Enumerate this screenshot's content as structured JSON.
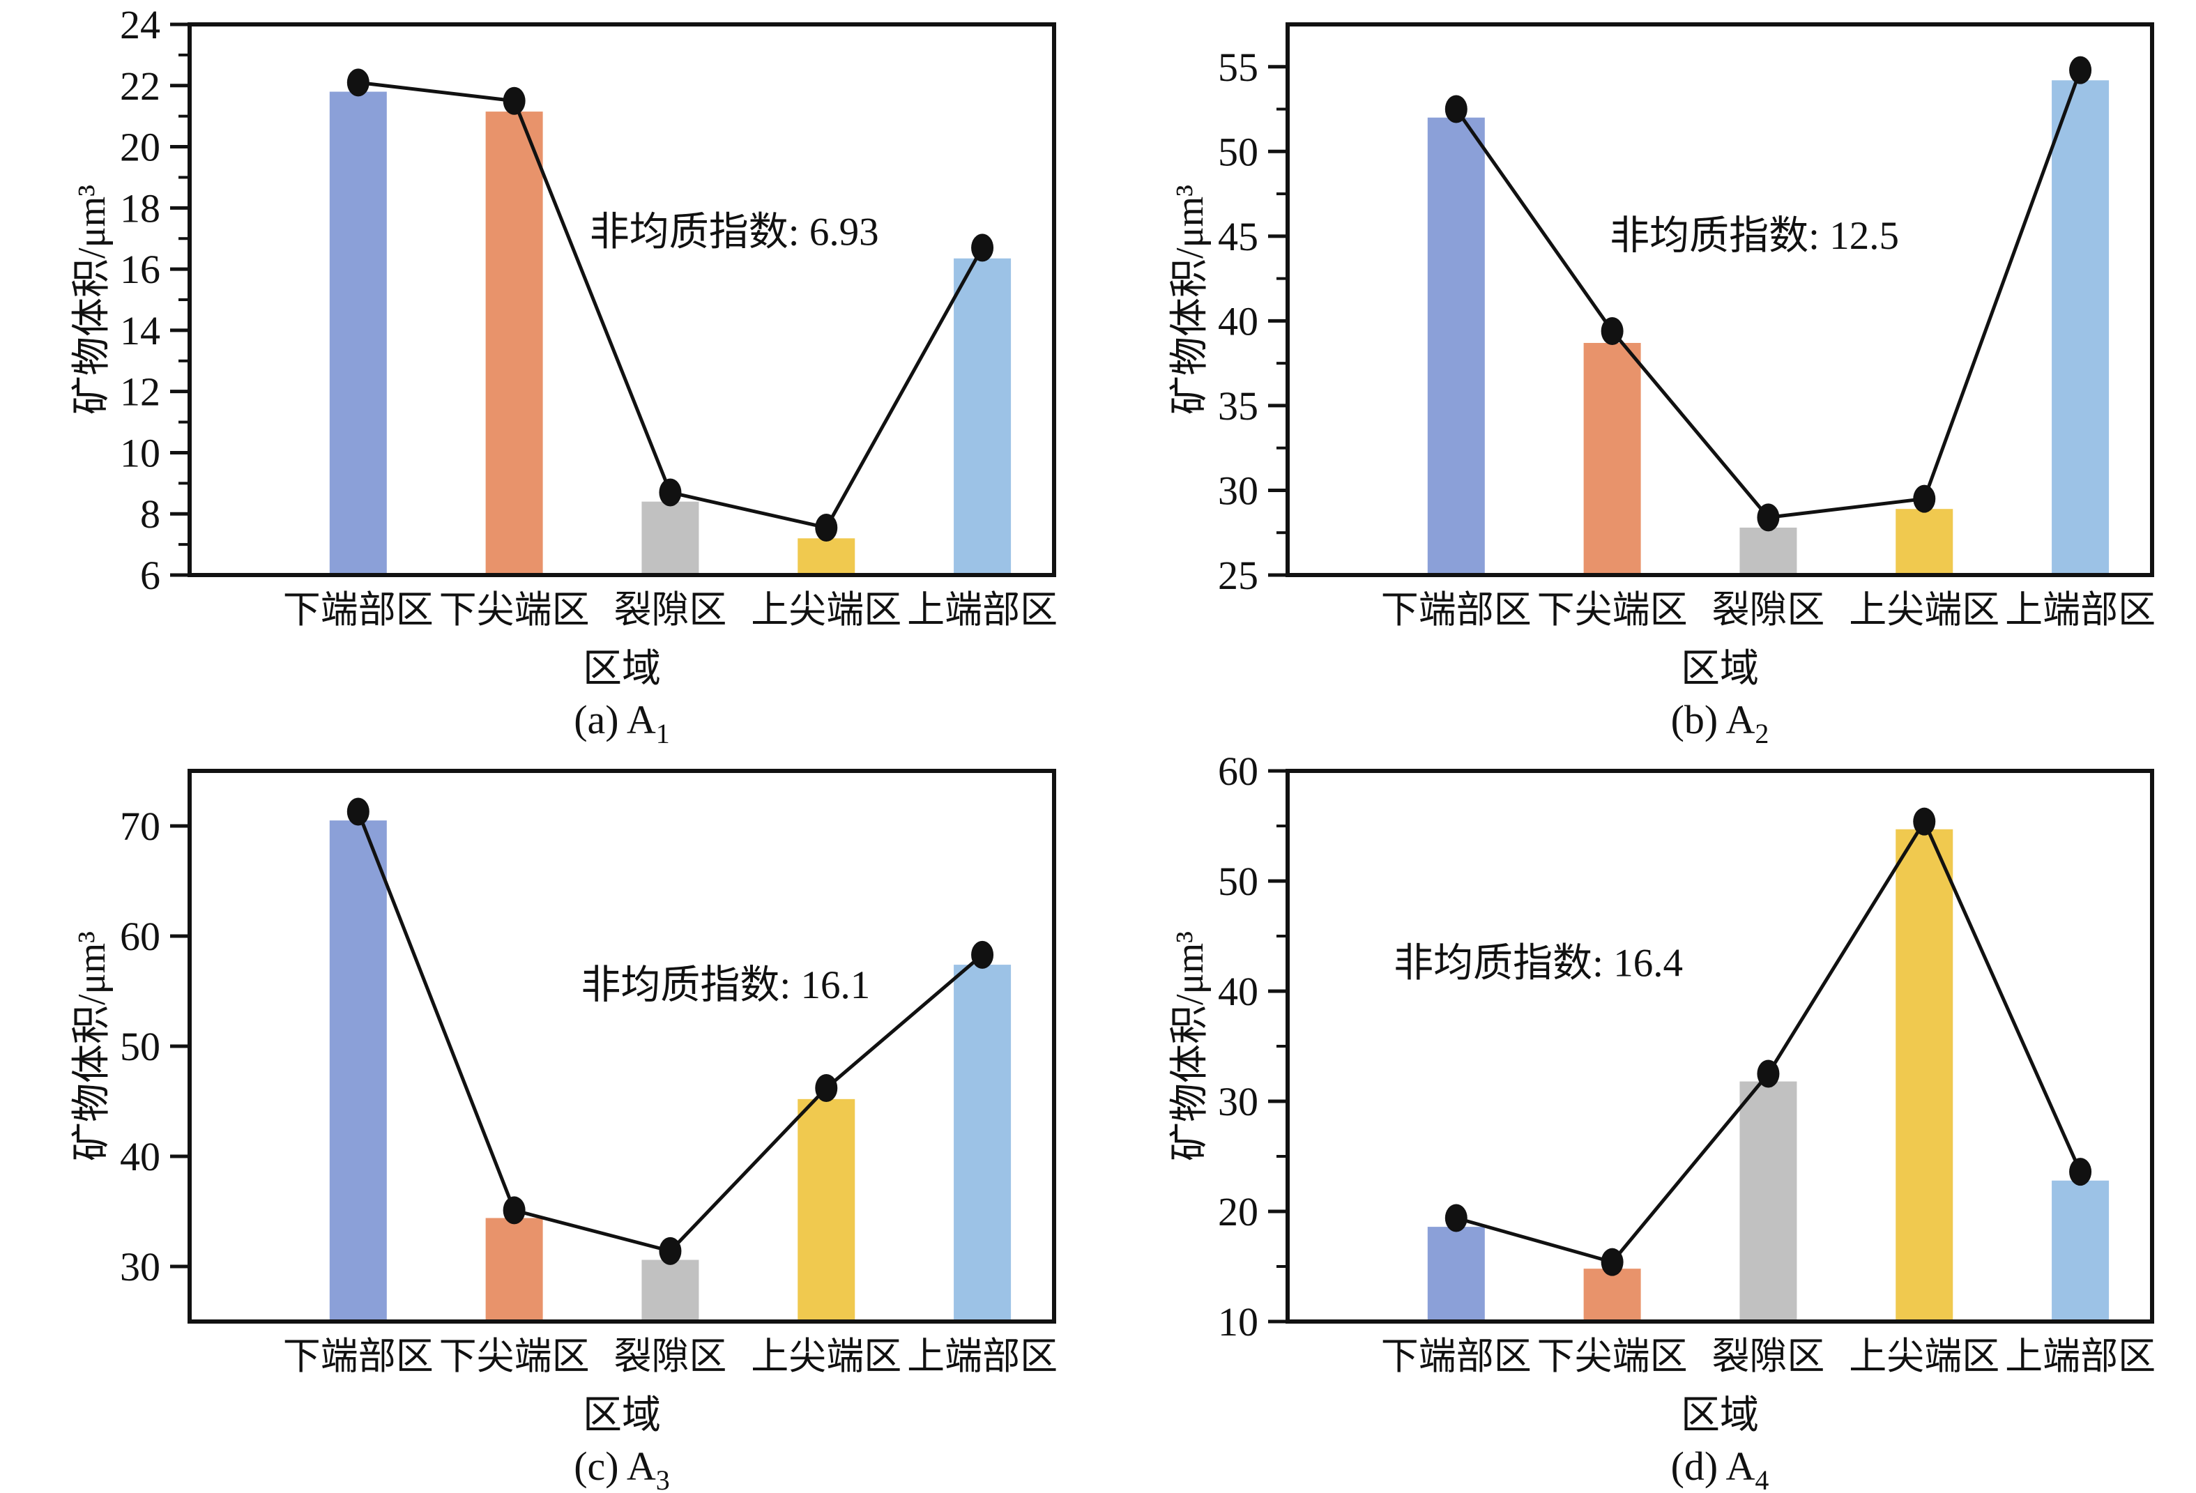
{
  "figure": {
    "background": "#ffffff",
    "line_color": "#111111",
    "axis_color": "#111111",
    "bar_palette": [
      "#8BA0D8",
      "#E8936B",
      "#C1C1C1",
      "#F0C94F",
      "#9CC2E6"
    ]
  },
  "chart_data": [
    {
      "id": "a",
      "type": "bar",
      "caption_prefix": "(a) A",
      "caption_sub": "1",
      "annotation": "非均质指数: 6.93",
      "annotation_fx": 0.63,
      "annotation_value": 17.2,
      "xlabel": "区域",
      "ylabel": "矿物体积/μm³",
      "categories": [
        "下端部区",
        "下尖端区",
        "裂隙区",
        "上尖端区",
        "上端部区"
      ],
      "bar_values": [
        21.8,
        21.15,
        8.4,
        7.2,
        16.35
      ],
      "line_values": [
        22.1,
        21.5,
        8.7,
        7.55,
        16.7
      ],
      "ylim": [
        6,
        24
      ],
      "ytick_step": 2,
      "yminor_step": 1
    },
    {
      "id": "b",
      "type": "bar",
      "caption_prefix": "(b) A",
      "caption_sub": "2",
      "annotation": "非均质指数: 12.5",
      "annotation_fx": 0.54,
      "annotation_value": 45.0,
      "xlabel": "区域",
      "ylabel": "矿物体积/μm³",
      "categories": [
        "下端部区",
        "下尖端区",
        "裂隙区",
        "上尖端区",
        "上端部区"
      ],
      "bar_values": [
        52.0,
        38.7,
        27.8,
        28.9,
        54.2
      ],
      "line_values": [
        52.5,
        39.4,
        28.4,
        29.5,
        54.8
      ],
      "ylim": [
        25,
        57.5
      ],
      "ytick_step": 5,
      "yminor_step": 2.5
    },
    {
      "id": "c",
      "type": "bar",
      "caption_prefix": "(c) A",
      "caption_sub": "3",
      "annotation": "非均质指数: 16.1",
      "annotation_fx": 0.62,
      "annotation_value": 55.5,
      "xlabel": "区域",
      "ylabel": "矿物体积/μm³",
      "categories": [
        "下端部区",
        "下尖端区",
        "裂隙区",
        "上尖端区",
        "上端部区"
      ],
      "bar_values": [
        70.5,
        34.4,
        30.6,
        45.2,
        57.4
      ],
      "line_values": [
        71.3,
        35.1,
        31.4,
        46.2,
        58.3
      ],
      "ylim": [
        25,
        75
      ],
      "ytick_step": 10,
      "yminor_step": 5,
      "ytick_min_label": 30,
      "ytick_max_label": 70
    },
    {
      "id": "d",
      "type": "bar",
      "caption_prefix": "(d) A",
      "caption_sub": "4",
      "annotation": "非均质指数: 16.4",
      "annotation_fx": 0.29,
      "annotation_value": 42.5,
      "xlabel": "区域",
      "ylabel": "矿物体积/μm³",
      "categories": [
        "下端部区",
        "下尖端区",
        "裂隙区",
        "上尖端区",
        "上端部区"
      ],
      "bar_values": [
        18.6,
        14.8,
        31.8,
        54.7,
        22.8
      ],
      "line_values": [
        19.4,
        15.4,
        32.5,
        55.4,
        23.6
      ],
      "ylim": [
        10,
        60
      ],
      "ytick_step": 10,
      "yminor_step": 5
    }
  ]
}
